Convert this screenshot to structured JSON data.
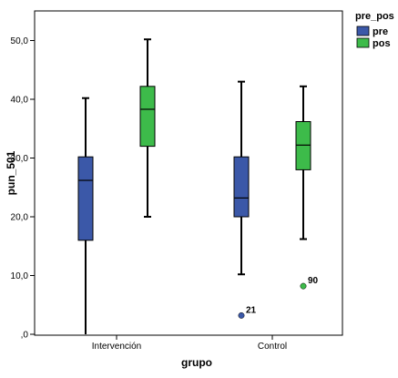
{
  "chart_data": {
    "type": "boxplot",
    "xlabel": "grupo",
    "ylabel": "pun_501",
    "ylim": [
      0,
      55
    ],
    "y_ticks": [
      0,
      10,
      20,
      30,
      40,
      50
    ],
    "y_tick_labels": [
      ",0",
      "10,0",
      "20,0",
      "30,0",
      "40,0",
      "50,0"
    ],
    "categories": [
      "Intervención",
      "Control"
    ],
    "legend": {
      "title": "pre_pos",
      "placement": "top-right"
    },
    "series": [
      {
        "name": "pre",
        "color": "#3b58a8",
        "boxes": [
          {
            "min": 0,
            "q1": 16,
            "median": 26.2,
            "q3": 30.2,
            "max": 40.2,
            "outliers": []
          },
          {
            "min": 10.2,
            "q1": 20,
            "median": 23.2,
            "q3": 30.2,
            "max": 43,
            "outliers": [
              {
                "value": 3.2,
                "label": "21"
              }
            ]
          }
        ]
      },
      {
        "name": "pos",
        "color": "#3dbb4a",
        "boxes": [
          {
            "min": 20,
            "q1": 32,
            "median": 38.3,
            "q3": 42.2,
            "max": 50.2,
            "outliers": []
          },
          {
            "min": 16.2,
            "q1": 28,
            "median": 32.2,
            "q3": 36.2,
            "max": 42.2,
            "outliers": [
              {
                "value": 8.2,
                "label": "90"
              }
            ]
          }
        ]
      }
    ]
  }
}
